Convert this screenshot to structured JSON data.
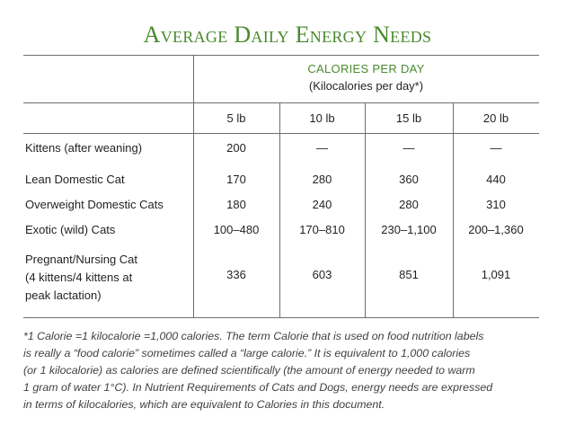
{
  "title": "Average Daily Energy Needs",
  "header": {
    "line1": "CALORIES PER DAY",
    "line2": "(Kilocalories per day*)"
  },
  "columns": [
    "5 lb",
    "10 lb",
    "15 lb",
    "20 lb"
  ],
  "rows": [
    {
      "label": "Kittens (after weaning)",
      "values": [
        "200",
        "—",
        "—",
        "—"
      ]
    },
    {
      "label": "Lean Domestic Cat",
      "values": [
        "170",
        "280",
        "360",
        "440"
      ]
    },
    {
      "label": "Overweight Domestic Cats",
      "values": [
        "180",
        "240",
        "280",
        "310"
      ]
    },
    {
      "label": "Exotic (wild) Cats",
      "values": [
        "100–480",
        "170–810",
        "230–1,100",
        "200–1,360"
      ]
    },
    {
      "label_lines": [
        "Pregnant/Nursing Cat",
        "(4 kittens/4 kittens at",
        "peak lactation)"
      ],
      "values": [
        "336",
        "603",
        "851",
        "1,091"
      ]
    }
  ],
  "footnote": [
    "*1 Calorie =1  kilocalorie =1,000 calories.  The term Calorie  that is used on food nutrition labels",
    "is really a  “food calorie” sometimes called a “large calorie.”  It is equivalent to 1,000 calories",
    "(or 1 kilocalorie)  as  calories are defined scientifically (the amount of energy needed to warm",
    "1 gram of water 1°C).  In Nutrient Requirements of Cats and Dogs, energy needs are expressed",
    "in terms of kilocalories, which are equivalent to Calories in this document."
  ]
}
